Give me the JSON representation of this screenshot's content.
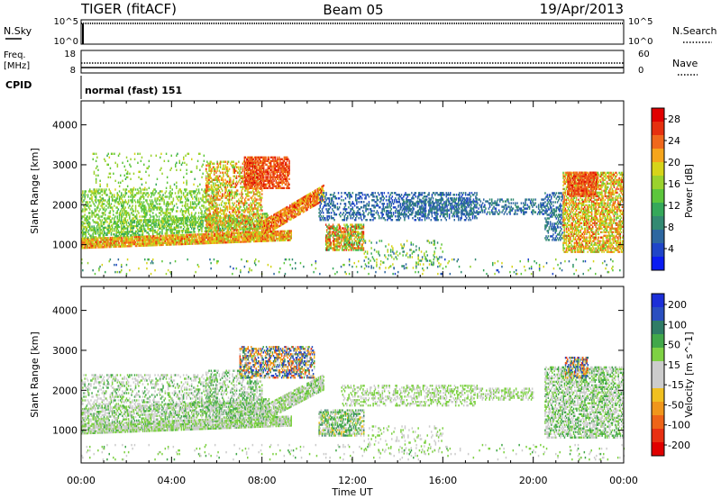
{
  "header": {
    "title_left": "TIGER (fitACF)",
    "title_center": "Beam 05",
    "title_right": "19/Apr/2013"
  },
  "panels": {
    "nsky": {
      "label": "N.Sky",
      "left_ticks": [
        "10^5",
        "10^0"
      ],
      "right_label": "N.Search",
      "right_ticks": [
        "10^5",
        "10^0"
      ]
    },
    "freq": {
      "label_top": "Freq.",
      "label_bottom": "[MHz]",
      "left_ticks": [
        "18",
        "8"
      ],
      "right_label": "Nave",
      "right_ticks": [
        "60",
        "0"
      ]
    },
    "cpid": {
      "label": "CPID",
      "value": "normal (fast) 151"
    }
  },
  "chart_data": [
    {
      "type": "heatmap",
      "name": "power",
      "ylabel": "Slant Range [km]",
      "yticks": [
        1000,
        2000,
        3000,
        4000
      ],
      "ylim": [
        180,
        4600
      ],
      "xlim": [
        0,
        24
      ],
      "colorbar": {
        "label": "Power [dB]",
        "ticks": [
          4,
          8,
          12,
          16,
          20,
          24,
          28
        ],
        "colors": [
          "#0a1cf2",
          "#1f45c8",
          "#2d67a0",
          "#338a72",
          "#35a85a",
          "#5cc63c",
          "#9ad22d",
          "#d6d419",
          "#f5a51c",
          "#f0681c",
          "#e6300f",
          "#e00000"
        ]
      },
      "regions": [
        {
          "t0": 0.0,
          "t1": 9.3,
          "r0": 900,
          "r1": 1150,
          "dens": 0.9,
          "lvl": [
            16,
            26
          ],
          "shape": "rise",
          "rise": 200
        },
        {
          "t0": 0.0,
          "t1": 8.3,
          "r0": 1150,
          "r1": 1550,
          "dens": 0.55,
          "lvl": [
            10,
            18
          ],
          "shape": "rise",
          "rise": 250
        },
        {
          "t0": 0.0,
          "t1": 6.0,
          "r0": 1550,
          "r1": 2400,
          "dens": 0.35,
          "lvl": [
            12,
            18
          ],
          "shape": "flat"
        },
        {
          "t0": 0.5,
          "t1": 5.5,
          "r0": 2400,
          "r1": 3300,
          "dens": 0.06,
          "lvl": [
            12,
            18
          ],
          "shape": "flat"
        },
        {
          "t0": 5.5,
          "t1": 8.0,
          "r0": 1300,
          "r1": 3100,
          "dens": 0.45,
          "lvl": [
            14,
            26
          ],
          "shape": "flat"
        },
        {
          "t0": 7.2,
          "t1": 9.2,
          "r0": 2400,
          "r1": 3200,
          "dens": 0.7,
          "lvl": [
            22,
            28
          ],
          "shape": "flat"
        },
        {
          "t0": 8.0,
          "t1": 10.7,
          "r0": 1200,
          "r1": 1600,
          "dens": 0.8,
          "lvl": [
            18,
            28
          ],
          "shape": "rise",
          "rise": 900
        },
        {
          "t0": 10.8,
          "t1": 12.5,
          "r0": 850,
          "r1": 1500,
          "dens": 0.65,
          "lvl": [
            10,
            28
          ],
          "shape": "flat"
        },
        {
          "t0": 10.5,
          "t1": 17.5,
          "r0": 1600,
          "r1": 2300,
          "dens": 0.35,
          "lvl": [
            3,
            9
          ],
          "shape": "flat"
        },
        {
          "t0": 14.0,
          "t1": 20.5,
          "r0": 1750,
          "r1": 2150,
          "dens": 0.35,
          "lvl": [
            4,
            10
          ],
          "shape": "flat"
        },
        {
          "t0": 12.5,
          "t1": 16.0,
          "r0": 400,
          "r1": 1100,
          "dens": 0.12,
          "lvl": [
            6,
            20
          ],
          "shape": "flat"
        },
        {
          "t0": 20.5,
          "t1": 21.3,
          "r0": 1100,
          "r1": 2300,
          "dens": 0.4,
          "lvl": [
            4,
            10
          ],
          "shape": "flat"
        },
        {
          "t0": 21.3,
          "t1": 24.0,
          "r0": 800,
          "r1": 2800,
          "dens": 0.6,
          "lvl": [
            14,
            26
          ],
          "shape": "flat"
        },
        {
          "t0": 21.5,
          "t1": 22.8,
          "r0": 2200,
          "r1": 2800,
          "dens": 0.7,
          "lvl": [
            22,
            28
          ],
          "shape": "flat"
        },
        {
          "t0": 0.0,
          "t1": 24.0,
          "r0": 250,
          "r1": 650,
          "dens": 0.04,
          "lvl": [
            4,
            20
          ],
          "shape": "flat"
        }
      ]
    },
    {
      "type": "heatmap",
      "name": "velocity",
      "ylabel": "Slant Range [km]",
      "yticks": [
        1000,
        2000,
        3000,
        4000
      ],
      "ylim": [
        180,
        4600
      ],
      "xlim": [
        0,
        24
      ],
      "xticks": [
        "00:00",
        "04:00",
        "08:00",
        "12:00",
        "16:00",
        "20:00",
        "00:00"
      ],
      "xlabel": "Time UT",
      "colorbar": {
        "label": "Velocity [m s^-1]",
        "ticks": [
          200,
          100,
          50,
          15,
          -15,
          -50,
          -100,
          -200
        ],
        "colors": [
          "#1c2fd8",
          "#2a4fc0",
          "#2f7c66",
          "#42a84a",
          "#7ed144",
          "#cccccc",
          "#cccccc",
          "#f0c021",
          "#f0961b",
          "#ee6418",
          "#e83012",
          "#e00000"
        ]
      },
      "regions": [
        {
          "t0": 0.0,
          "t1": 9.3,
          "r0": 900,
          "r1": 1150,
          "dens": 0.85,
          "lvl": [
            -18,
            18
          ],
          "shape": "rise",
          "rise": 200
        },
        {
          "t0": 0.0,
          "t1": 8.3,
          "r0": 1150,
          "r1": 1550,
          "dens": 0.55,
          "lvl": [
            -25,
            25
          ],
          "shape": "rise",
          "rise": 250
        },
        {
          "t0": 0.0,
          "t1": 6.0,
          "r0": 1550,
          "r1": 2400,
          "dens": 0.3,
          "lvl": [
            -40,
            30
          ],
          "shape": "flat"
        },
        {
          "t0": 5.5,
          "t1": 8.0,
          "r0": 1300,
          "r1": 2500,
          "dens": 0.35,
          "lvl": [
            -40,
            40
          ],
          "shape": "flat"
        },
        {
          "t0": 7.0,
          "t1": 10.3,
          "r0": 2300,
          "r1": 3100,
          "dens": 0.55,
          "lvl": [
            -210,
            210
          ],
          "shape": "flat"
        },
        {
          "t0": 8.0,
          "t1": 10.7,
          "r0": 1200,
          "r1": 1600,
          "dens": 0.75,
          "lvl": [
            -20,
            20
          ],
          "shape": "rise",
          "rise": 800
        },
        {
          "t0": 10.5,
          "t1": 12.5,
          "r0": 850,
          "r1": 1500,
          "dens": 0.6,
          "lvl": [
            -60,
            60
          ],
          "shape": "flat"
        },
        {
          "t0": 11.5,
          "t1": 17.5,
          "r0": 1600,
          "r1": 2100,
          "dens": 0.35,
          "lvl": [
            -15,
            15
          ],
          "shape": "flat"
        },
        {
          "t0": 17.5,
          "t1": 20.0,
          "r0": 1750,
          "r1": 2050,
          "dens": 0.4,
          "lvl": [
            -15,
            15
          ],
          "shape": "flat"
        },
        {
          "t0": 12.5,
          "t1": 16.0,
          "r0": 400,
          "r1": 1100,
          "dens": 0.1,
          "lvl": [
            -15,
            15
          ],
          "shape": "flat"
        },
        {
          "t0": 20.5,
          "t1": 24.0,
          "r0": 800,
          "r1": 2600,
          "dens": 0.55,
          "lvl": [
            -30,
            30
          ],
          "shape": "flat"
        },
        {
          "t0": 21.4,
          "t1": 22.4,
          "r0": 2300,
          "r1": 2800,
          "dens": 0.6,
          "lvl": [
            -220,
            220
          ],
          "shape": "flat"
        },
        {
          "t0": 0.0,
          "t1": 24.0,
          "r0": 250,
          "r1": 650,
          "dens": 0.05,
          "lvl": [
            -20,
            20
          ],
          "shape": "flat"
        }
      ]
    }
  ]
}
